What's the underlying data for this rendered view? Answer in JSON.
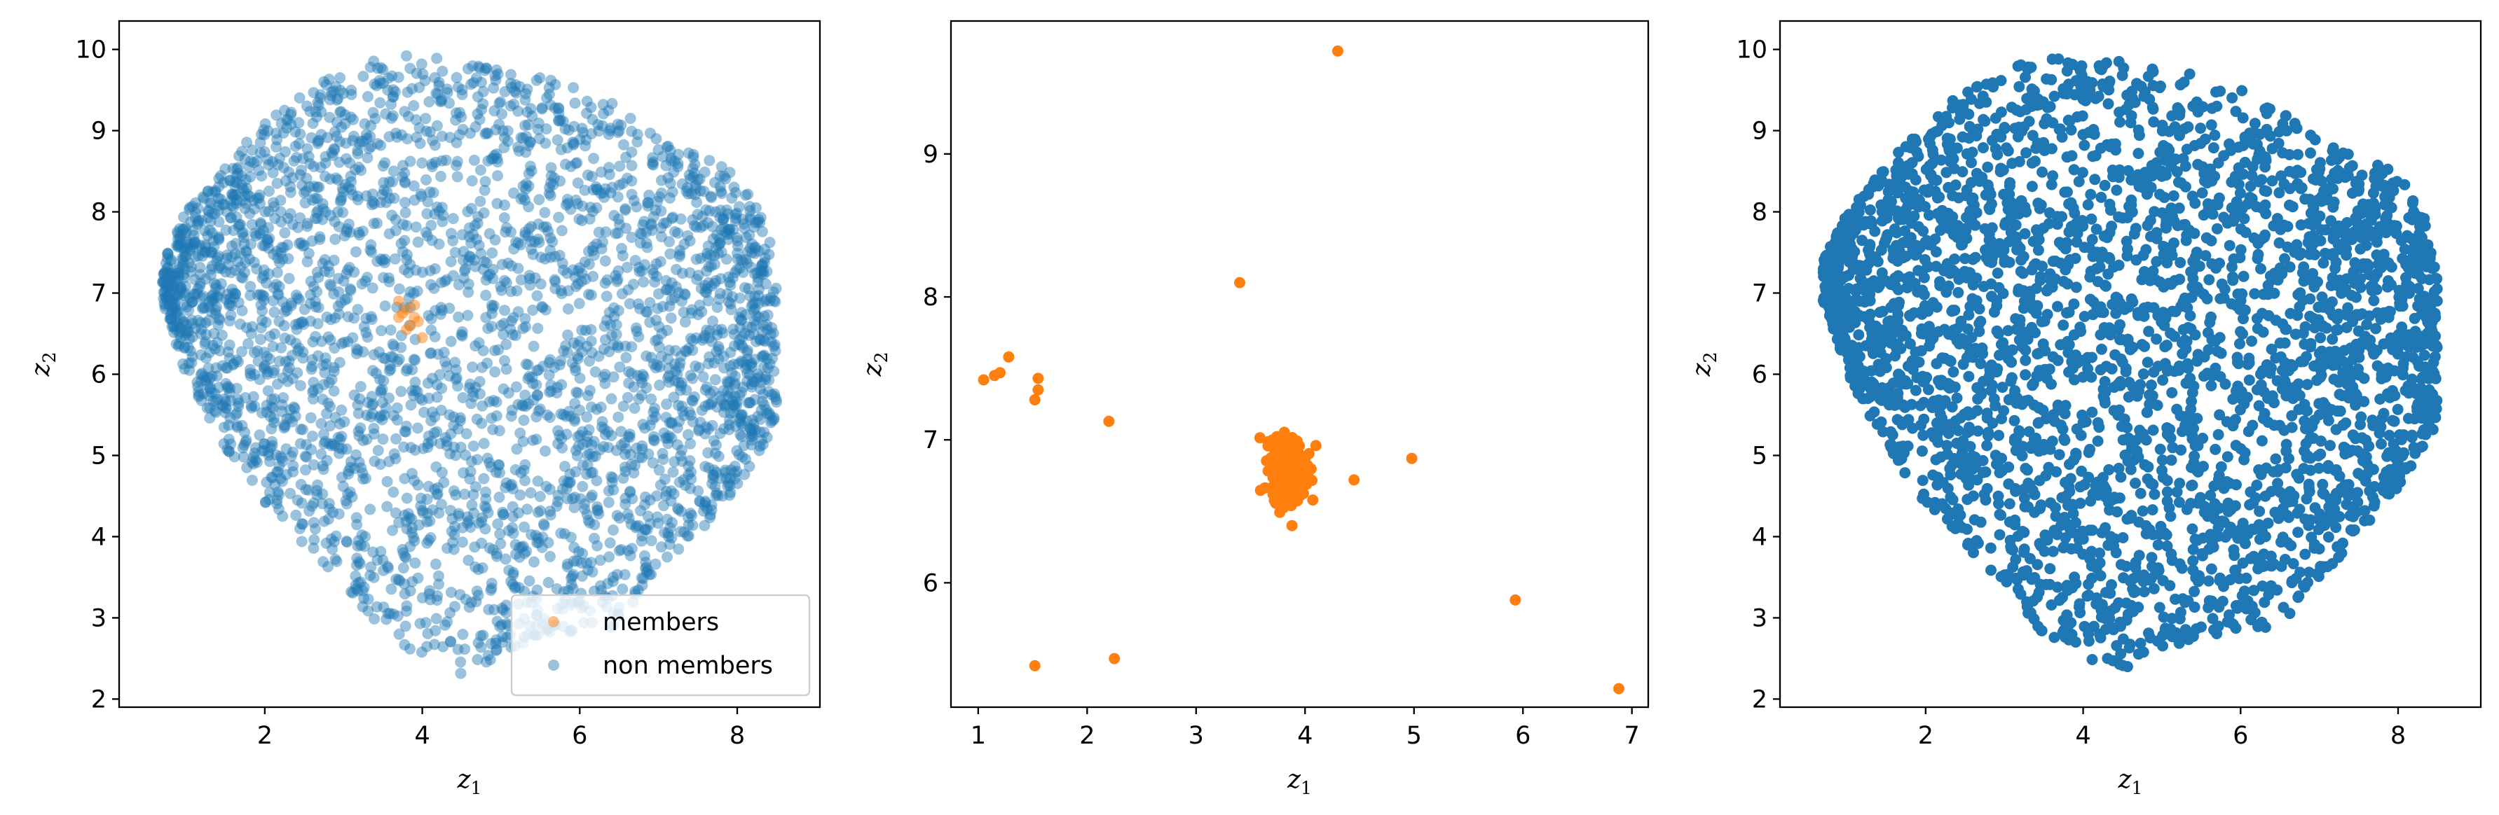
{
  "chart_data": [
    {
      "type": "scatter",
      "title": "",
      "xlabel": "z",
      "xlabel_sub": "1",
      "ylabel": "z",
      "ylabel_sub": "2",
      "xlim": [
        0.15,
        9.05
      ],
      "ylim": [
        1.9,
        10.35
      ],
      "xticks": [
        2,
        4,
        6,
        8
      ],
      "yticks": [
        2,
        3,
        4,
        5,
        6,
        7,
        8,
        9,
        10
      ],
      "grid": false,
      "legend_position": "lower-right",
      "series": [
        {
          "name": "members",
          "color": "#ff7f0e",
          "alpha": 0.5,
          "points": [
            [
              3.7,
              6.9
            ],
            [
              3.8,
              6.8
            ],
            [
              3.75,
              6.75
            ],
            [
              3.9,
              6.7
            ],
            [
              3.85,
              6.6
            ],
            [
              3.95,
              6.65
            ],
            [
              3.8,
              6.55
            ],
            [
              3.9,
              6.85
            ],
            [
              4.0,
              6.45
            ],
            [
              3.7,
              6.7
            ]
          ]
        },
        {
          "name": "non members",
          "color": "#1f77b4",
          "alpha": 0.45,
          "cloud": {
            "top": [
              [
                0.7,
                7.4
              ],
              [
                1.0,
                8.0
              ],
              [
                1.5,
                8.6
              ],
              [
                2.0,
                9.1
              ],
              [
                2.5,
                9.5
              ],
              [
                3.0,
                9.75
              ],
              [
                3.5,
                9.9
              ],
              [
                4.0,
                9.95
              ],
              [
                4.5,
                9.85
              ],
              [
                5.0,
                9.75
              ],
              [
                5.5,
                9.7
              ],
              [
                6.0,
                9.5
              ],
              [
                6.5,
                9.3
              ],
              [
                7.0,
                8.9
              ],
              [
                7.5,
                8.7
              ],
              [
                8.0,
                8.5
              ],
              [
                8.4,
                7.8
              ],
              [
                8.55,
                6.8
              ],
              [
                8.6,
                6.0
              ],
              [
                8.5,
                5.4
              ]
            ],
            "bottom": [
              [
                0.7,
                6.9
              ],
              [
                1.0,
                6.0
              ],
              [
                1.5,
                5.1
              ],
              [
                2.0,
                4.4
              ],
              [
                2.5,
                3.9
              ],
              [
                3.0,
                3.4
              ],
              [
                3.5,
                2.8
              ],
              [
                4.0,
                2.5
              ],
              [
                4.5,
                2.3
              ],
              [
                5.0,
                2.5
              ],
              [
                5.5,
                2.8
              ],
              [
                6.0,
                2.8
              ],
              [
                6.5,
                2.9
              ],
              [
                7.0,
                3.5
              ],
              [
                7.5,
                4.0
              ],
              [
                8.0,
                4.6
              ],
              [
                8.5,
                5.4
              ]
            ]
          }
        }
      ]
    },
    {
      "type": "scatter",
      "title": "",
      "xlabel": "z",
      "xlabel_sub": "1",
      "ylabel": "z",
      "ylabel_sub": "2",
      "xlim": [
        0.75,
        7.15
      ],
      "ylim": [
        5.13,
        9.93
      ],
      "xticks": [
        1,
        2,
        3,
        4,
        5,
        6,
        7
      ],
      "yticks": [
        6,
        7,
        8,
        9
      ],
      "grid": false,
      "series": [
        {
          "color": "#ff7f0e",
          "alpha": 1.0,
          "points": [
            [
              4.3,
              9.72
            ],
            [
              3.4,
              8.1
            ],
            [
              1.05,
              7.42
            ],
            [
              1.15,
              7.45
            ],
            [
              1.2,
              7.47
            ],
            [
              1.28,
              7.58
            ],
            [
              1.55,
              7.43
            ],
            [
              1.55,
              7.35
            ],
            [
              1.52,
              7.28
            ],
            [
              2.2,
              7.13
            ],
            [
              4.1,
              6.96
            ],
            [
              4.45,
              6.72
            ],
            [
              4.98,
              6.87
            ],
            [
              3.88,
              6.4
            ],
            [
              5.93,
              5.88
            ],
            [
              6.88,
              5.26
            ],
            [
              1.52,
              5.42
            ],
            [
              2.25,
              5.47
            ]
          ],
          "cluster": {
            "center": [
              3.85,
              6.8
            ],
            "spread": [
              0.13,
              0.17
            ],
            "count": 400
          }
        }
      ]
    },
    {
      "type": "scatter",
      "title": "",
      "xlabel": "z",
      "xlabel_sub": "1",
      "ylabel": "z",
      "ylabel_sub": "2",
      "xlim": [
        0.15,
        9.05
      ],
      "ylim": [
        1.9,
        10.35
      ],
      "xticks": [
        2,
        4,
        6,
        8
      ],
      "yticks": [
        2,
        3,
        4,
        5,
        6,
        7,
        8,
        9,
        10
      ],
      "grid": false,
      "series": [
        {
          "color": "#1f77b4",
          "alpha": 1.0,
          "cloud": {
            "top": [
              [
                0.7,
                7.4
              ],
              [
                1.0,
                8.0
              ],
              [
                1.5,
                8.6
              ],
              [
                2.0,
                9.1
              ],
              [
                2.5,
                9.5
              ],
              [
                3.0,
                9.75
              ],
              [
                3.5,
                9.9
              ],
              [
                4.0,
                9.95
              ],
              [
                4.5,
                9.85
              ],
              [
                5.0,
                9.75
              ],
              [
                5.5,
                9.7
              ],
              [
                6.0,
                9.5
              ],
              [
                6.5,
                9.3
              ],
              [
                7.0,
                8.9
              ],
              [
                7.5,
                8.7
              ],
              [
                8.0,
                8.5
              ],
              [
                8.4,
                7.8
              ],
              [
                8.55,
                6.8
              ],
              [
                8.6,
                6.0
              ],
              [
                8.5,
                5.4
              ]
            ],
            "bottom": [
              [
                0.7,
                6.9
              ],
              [
                1.0,
                6.0
              ],
              [
                1.5,
                5.1
              ],
              [
                2.0,
                4.4
              ],
              [
                2.5,
                3.9
              ],
              [
                3.0,
                3.4
              ],
              [
                3.5,
                2.8
              ],
              [
                4.0,
                2.5
              ],
              [
                4.5,
                2.3
              ],
              [
                5.0,
                2.5
              ],
              [
                5.5,
                2.8
              ],
              [
                6.0,
                2.8
              ],
              [
                6.5,
                2.9
              ],
              [
                7.0,
                3.5
              ],
              [
                7.5,
                4.0
              ],
              [
                8.0,
                4.6
              ],
              [
                8.5,
                5.4
              ]
            ]
          }
        }
      ]
    }
  ]
}
